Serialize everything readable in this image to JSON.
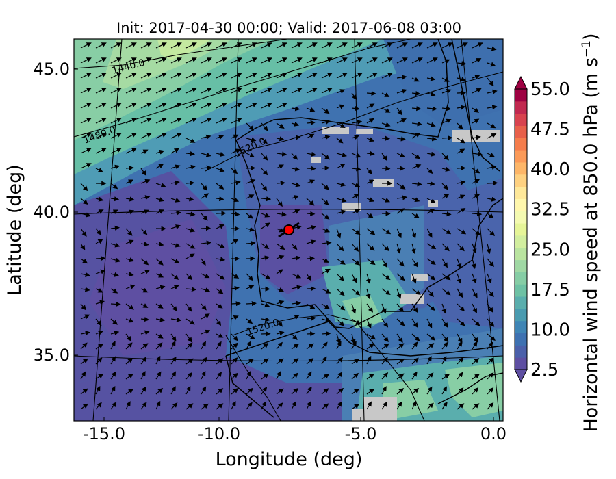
{
  "figure": {
    "title": "Init: 2017-04-30 00:00; Valid: 2017-06-08 03:00"
  },
  "map": {
    "xlabel": "Longitude (deg)",
    "ylabel": "Latitude (deg)",
    "lon_ticks": [
      "-15.0",
      "-10.0",
      "-5.0",
      "0.0"
    ],
    "lat_ticks": [
      "45.0",
      "40.0",
      "35.0"
    ],
    "contour_labels": [
      "1440.0",
      "1480.0",
      "1520.0",
      "1520.0"
    ],
    "marker_color": "#ff0000"
  },
  "colorbar": {
    "label": "Horizontal wind speed at 850.0 hPa (m s",
    "label_unit_sup": "−1",
    "label_close": ")",
    "ticks": [
      "55.0",
      "47.5",
      "40.0",
      "32.5",
      "25.0",
      "17.5",
      "10.0",
      "2.5"
    ],
    "colors": [
      "#5e4fa2",
      "#4b60aa",
      "#3e71b1",
      "#3f85b5",
      "#4a9bb0",
      "#5aaead",
      "#6ec1a4",
      "#86cda5",
      "#a0d8a4",
      "#bae4a0",
      "#d2ee9f",
      "#e6f598",
      "#f4fab1",
      "#fff7ad",
      "#fee89a",
      "#fed181",
      "#fdb668",
      "#fb9a58",
      "#f57d4c",
      "#e8604a",
      "#d8434f",
      "#c12950",
      "#9e0142"
    ]
  }
}
